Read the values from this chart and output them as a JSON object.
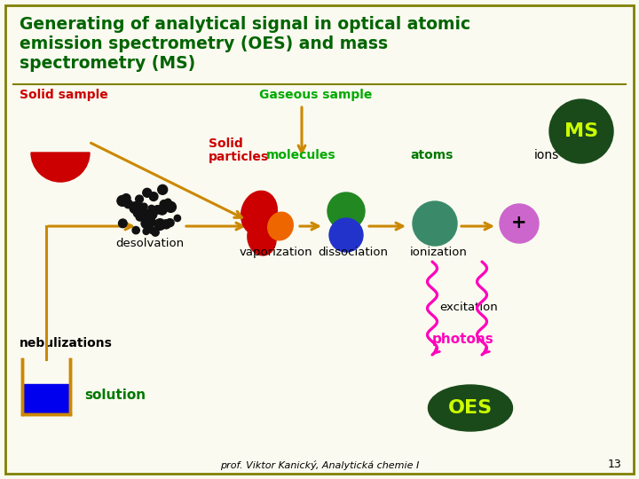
{
  "title_line1": "Generating of analytical signal in optical atomic",
  "title_line2": "emission spectrometry (OES) and mass",
  "title_line3": "spectrometry (MS)",
  "title_color": "#006400",
  "background_color": "#FAFAF0",
  "border_color": "#808000",
  "footer_text": "prof. Viktor Kanický, Analytická chemie I",
  "page_number": "13",
  "arrow_color": "#CC8800",
  "ms_circle_color": "#1A4A1A",
  "ms_text_color": "#CCFF00",
  "oes_ellipse_color": "#1A4A1A",
  "oes_text_color": "#CCFF00",
  "wavy_color": "#FF00BB",
  "ion_circle_color": "#CC66CC",
  "atom_circle_color": "#3A8A6A",
  "molecule_green_color": "#228822",
  "molecule_blue_color": "#2233CC",
  "solid_particle_red1": "#CC0000",
  "solid_particle_orange": "#EE6600",
  "solution_box_color": "#0000EE",
  "beaker_color": "#CC8800",
  "label_solid_sample_color": "#CC0000",
  "label_gaseous_color": "#00AA00",
  "label_solid_particles_color": "#CC0000",
  "label_molecules_color": "#00AA00",
  "label_atoms_color": "#007700",
  "label_solution_color": "#007700",
  "label_photons_color": "#FF00BB"
}
